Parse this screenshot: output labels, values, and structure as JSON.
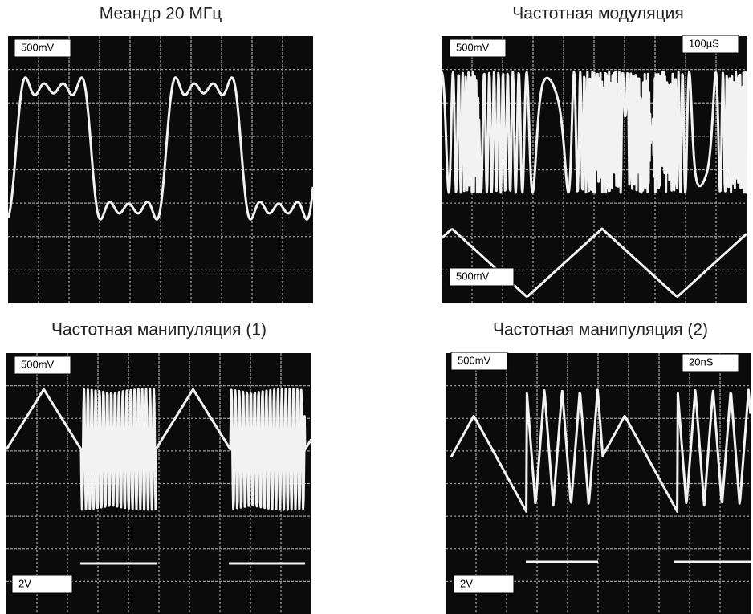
{
  "panels": [
    {
      "title": "Меандр 20 МГц",
      "labels": [
        "500mV"
      ]
    },
    {
      "title": "Частотная модуляция",
      "labels": [
        "500mV",
        "100µS",
        "500mV"
      ]
    },
    {
      "title": "Частотная манипуляция (1)",
      "labels": [
        "500mV",
        "2V"
      ]
    },
    {
      "title": "Частотная манипуляция (2)",
      "labels": [
        "500mV",
        "20nS",
        "2V"
      ]
    }
  ]
}
